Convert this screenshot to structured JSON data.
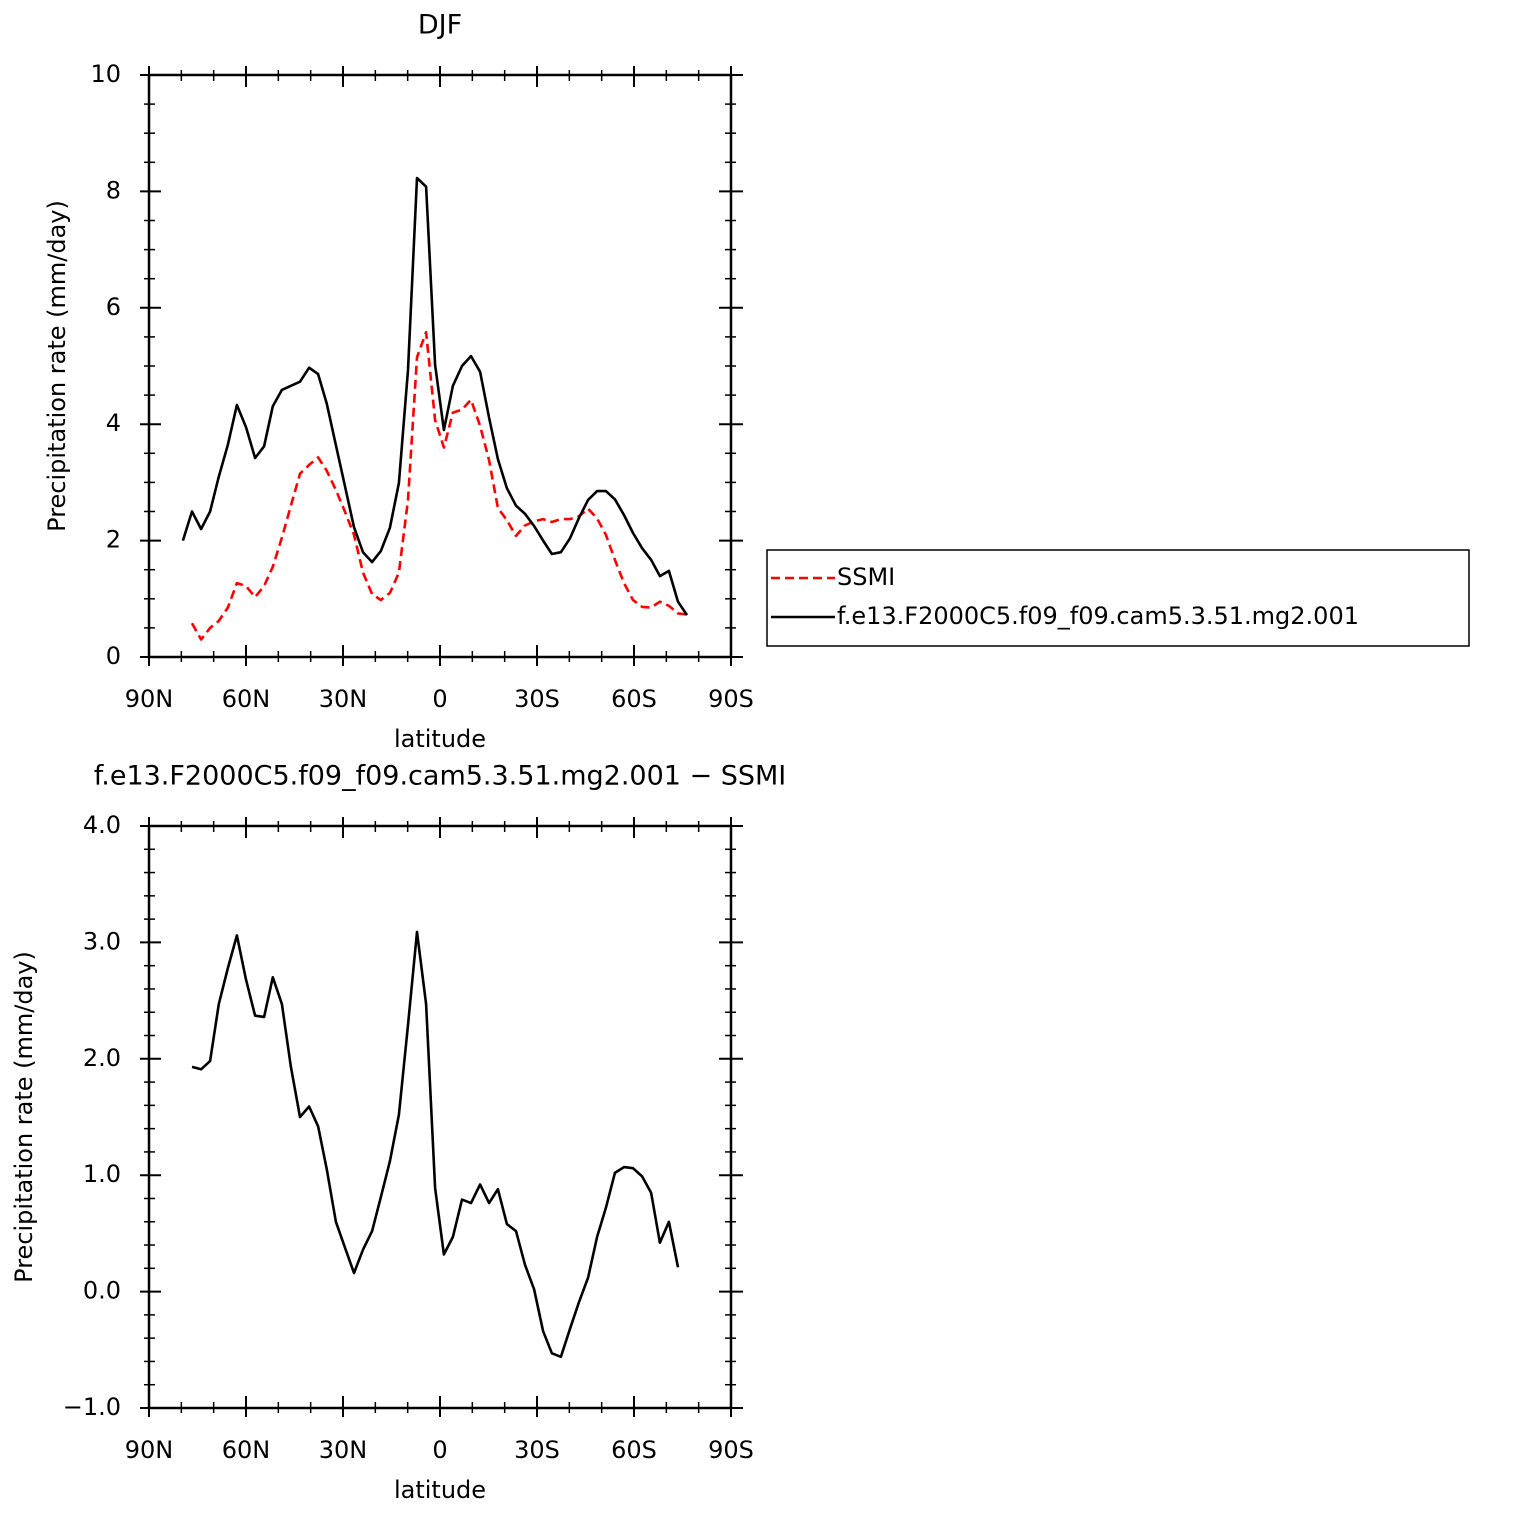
{
  "chart_data": [
    {
      "type": "line",
      "title": "DJF",
      "x_label": "latitude",
      "y_label": "Precipitation rate (mm/day)",
      "x": [
        79.5,
        76.7,
        73.9,
        71.1,
        68.4,
        65.6,
        62.8,
        60.0,
        57.2,
        54.4,
        51.7,
        48.9,
        46.1,
        43.3,
        40.5,
        37.7,
        35.0,
        32.2,
        29.4,
        26.6,
        23.8,
        21.0,
        18.3,
        15.5,
        12.7,
        9.9,
        7.1,
        4.3,
        1.5,
        -1.2,
        -4.0,
        -6.8,
        -9.6,
        -12.4,
        -15.2,
        -17.9,
        -20.7,
        -23.5,
        -26.3,
        -29.1,
        -31.9,
        -34.6,
        -37.4,
        -40.2,
        -43.0,
        -45.8,
        -48.6,
        -51.3,
        -54.1,
        -56.9,
        -59.7,
        -62.5,
        -65.3,
        -68.0,
        -70.8,
        -73.6,
        -76.4
      ],
      "series": [
        {
          "name": "SSMI",
          "color": "#ff0000",
          "dashed": true,
          "values": [
            null,
            0.58,
            0.3,
            0.5,
            0.62,
            0.85,
            1.27,
            1.22,
            1.03,
            1.22,
            1.55,
            2.05,
            2.6,
            3.15,
            3.3,
            3.43,
            3.2,
            2.87,
            2.5,
            2.1,
            1.45,
            1.08,
            0.98,
            1.1,
            1.45,
            2.7,
            5.15,
            5.58,
            4.07,
            3.6,
            4.2,
            4.25,
            4.42,
            3.97,
            3.38,
            2.56,
            2.35,
            2.08,
            2.26,
            2.33,
            2.37,
            2.32,
            2.37,
            2.37,
            2.42,
            2.55,
            2.38,
            2.1,
            1.67,
            1.27,
            0.98,
            0.86,
            0.85,
            0.95,
            0.88,
            0.75,
            0.73
          ]
        },
        {
          "name": "f.e13.F2000C5.f09_f09.cam5.3.51.mg2.001",
          "color": "#000000",
          "dashed": false,
          "values": [
            2.0,
            2.5,
            2.2,
            2.5,
            3.1,
            3.65,
            4.33,
            3.95,
            3.42,
            3.62,
            4.31,
            4.59,
            4.66,
            4.73,
            4.97,
            4.86,
            4.35,
            3.64,
            2.94,
            2.23,
            1.8,
            1.63,
            1.82,
            2.22,
            2.99,
            4.93,
            8.23,
            8.08,
            5.02,
            3.9,
            4.66,
            5.0,
            5.17,
            4.9,
            4.11,
            3.4,
            2.9,
            2.6,
            2.46,
            2.25,
            2.0,
            1.77,
            1.8,
            2.04,
            2.39,
            2.7,
            2.85,
            2.85,
            2.71,
            2.44,
            2.13,
            1.87,
            1.67,
            1.39,
            1.48,
            0.95,
            0.72
          ]
        }
      ],
      "xlim": [
        90,
        -90
      ],
      "xticks": [
        {
          "value": 90,
          "label": "90N"
        },
        {
          "value": 60,
          "label": "60N"
        },
        {
          "value": 30,
          "label": "30N"
        },
        0,
        {
          "value": -30,
          "label": "30S"
        },
        {
          "value": -60,
          "label": "60S"
        },
        {
          "value": -90,
          "label": "90S"
        }
      ],
      "ylim": [
        0,
        10
      ],
      "yticks": [
        0,
        2,
        4,
        6,
        8,
        10
      ],
      "legend": "right"
    },
    {
      "type": "line",
      "title": "f.e13.F2000C5.f09_f09.cam5.3.51.mg2.001 − SSMI",
      "x_label": "latitude",
      "y_label": "Precipitation rate (mm/day)",
      "x": [
        79.5,
        76.7,
        73.9,
        71.1,
        68.4,
        65.6,
        62.8,
        60.0,
        57.2,
        54.4,
        51.7,
        48.9,
        46.1,
        43.3,
        40.5,
        37.7,
        35.0,
        32.2,
        29.4,
        26.6,
        23.8,
        21.0,
        18.3,
        15.5,
        12.7,
        9.9,
        7.1,
        4.3,
        1.5,
        -1.2,
        -4.0,
        -6.8,
        -9.6,
        -12.4,
        -15.2,
        -17.9,
        -20.7,
        -23.5,
        -26.3,
        -29.1,
        -31.9,
        -34.6,
        -37.4,
        -40.2,
        -43.0,
        -45.8,
        -48.6,
        -51.3,
        -54.1,
        -56.9,
        -59.7,
        -62.5,
        -65.3,
        -68.0,
        -70.8,
        -73.6,
        -76.4
      ],
      "values": [
        null,
        1.93,
        1.91,
        1.98,
        2.47,
        2.78,
        3.06,
        2.68,
        2.37,
        2.36,
        2.7,
        2.47,
        1.93,
        1.5,
        1.59,
        1.42,
        1.05,
        0.6,
        0.38,
        0.16,
        0.36,
        0.52,
        0.81,
        1.12,
        1.52,
        2.29,
        3.09,
        2.47,
        0.89,
        0.32,
        0.47,
        0.79,
        0.76,
        0.92,
        0.76,
        0.88,
        0.58,
        0.52,
        0.23,
        0.02,
        -0.34,
        -0.53,
        -0.56,
        -0.32,
        -0.09,
        0.12,
        0.47,
        0.72,
        1.02,
        1.07,
        1.06,
        0.99,
        0.85,
        0.42,
        0.6,
        0.21,
        null
      ],
      "color": "#000000",
      "xlim": [
        90,
        -90
      ],
      "xticks": [
        {
          "value": 90,
          "label": "90N"
        },
        {
          "value": 60,
          "label": "60N"
        },
        {
          "value": 30,
          "label": "30N"
        },
        0,
        {
          "value": -30,
          "label": "30S"
        },
        {
          "value": -60,
          "label": "60S"
        },
        {
          "value": -90,
          "label": "90S"
        }
      ],
      "ylim": [
        -1,
        4
      ],
      "yticks": [
        {
          "value": -1,
          "label": "−1.0"
        },
        {
          "value": 0,
          "label": "0.0"
        },
        {
          "value": 1,
          "label": "1.0"
        },
        {
          "value": 2,
          "label": "2.0"
        },
        {
          "value": 3,
          "label": "3.0"
        },
        {
          "value": 4,
          "label": "4.0"
        }
      ]
    }
  ]
}
